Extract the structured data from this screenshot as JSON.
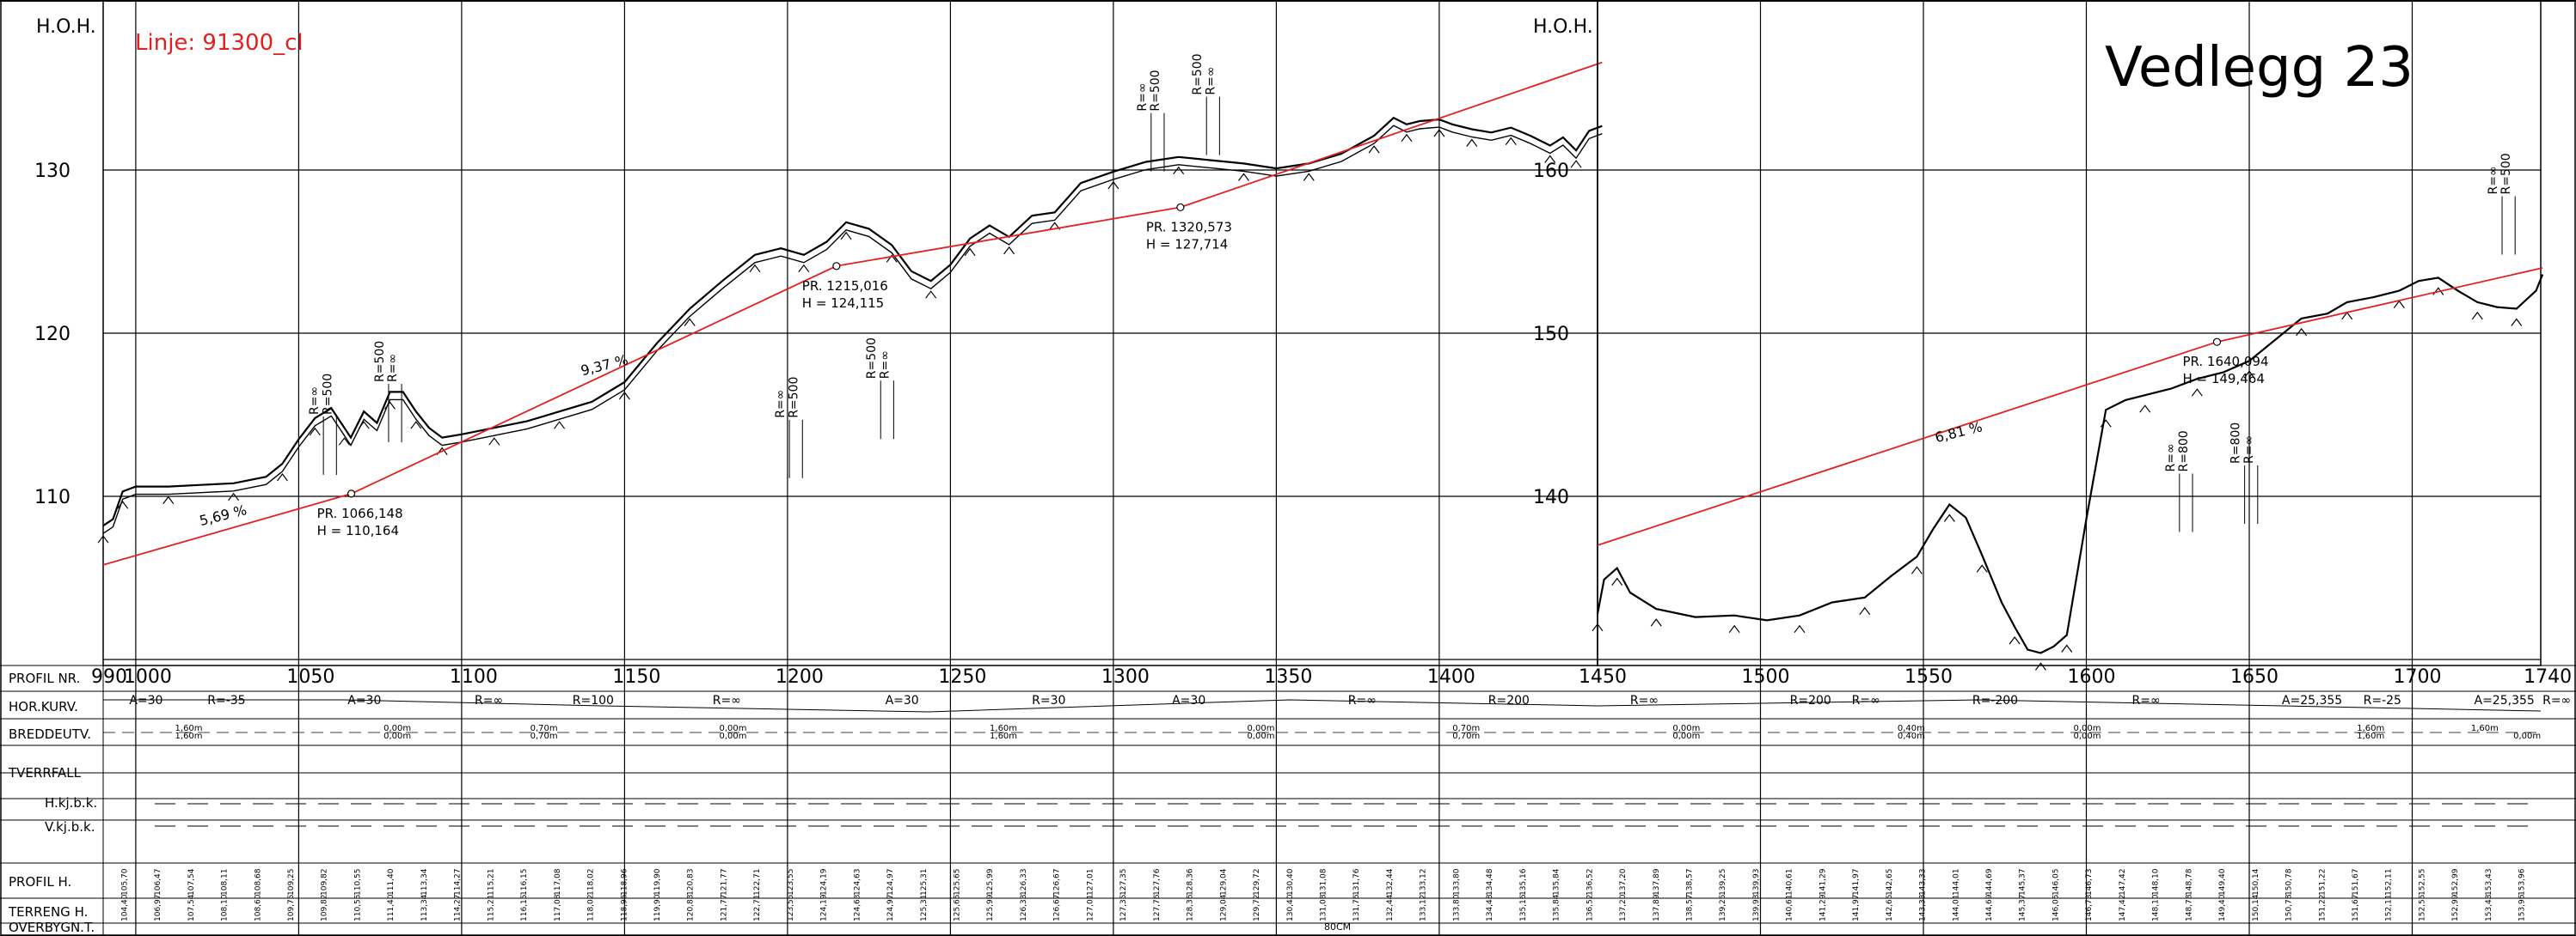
{
  "title": "Vedlegg 23",
  "line_label": "Linje: 91300_cl",
  "hoh_label": "H.O.H.",
  "left_panel": {
    "elev_ticks": [
      {
        "v": 110,
        "label": "110"
      },
      {
        "v": 120,
        "label": "120"
      },
      {
        "v": 130,
        "label": "130"
      }
    ],
    "chainage_labels": [
      "990",
      "1000",
      "1050",
      "1100",
      "1150",
      "1200",
      "1250",
      "1300",
      "1350",
      "1400"
    ],
    "grades": [
      {
        "text": "5,69 %",
        "ch": 1020,
        "elev": 108.2
      },
      {
        "text": "9,37 %",
        "ch": 1137,
        "elev": 117.4
      }
    ],
    "vpi": [
      {
        "pr": "PR. 1066,148",
        "h": "H = 110,164",
        "ch": 1066.148,
        "elev": 110.164
      },
      {
        "pr": "PR. 1215,016",
        "h": "H = 124,115",
        "ch": 1215.016,
        "elev": 124.115
      },
      {
        "pr": "PR. 1320,573",
        "h": "H = 127,714",
        "ch": 1320.573,
        "elev": 127.714
      }
    ],
    "radius_labels": [
      {
        "text": "R=∞",
        "ch": 1056,
        "elev": 115
      },
      {
        "text": "R=500",
        "ch": 1060,
        "elev": 115
      },
      {
        "text": "R=500",
        "ch": 1076,
        "elev": 117
      },
      {
        "text": "R=∞",
        "ch": 1080,
        "elev": 117
      },
      {
        "text": "R=∞",
        "ch": 1199,
        "elev": 114.8
      },
      {
        "text": "R=500",
        "ch": 1203,
        "elev": 114.8
      },
      {
        "text": "R=500",
        "ch": 1227,
        "elev": 117.2
      },
      {
        "text": "R=∞",
        "ch": 1231,
        "elev": 117.2
      },
      {
        "text": "R=∞",
        "ch": 1310,
        "elev": 133.6
      },
      {
        "text": "R=500",
        "ch": 1314,
        "elev": 133.6
      },
      {
        "text": "R=500",
        "ch": 1327,
        "elev": 134.6
      },
      {
        "text": "R=∞",
        "ch": 1331,
        "elev": 134.6
      }
    ]
  },
  "right_panel": {
    "elev_ticks": [
      {
        "v": 140,
        "label": "140"
      },
      {
        "v": 150,
        "label": "150"
      },
      {
        "v": 160,
        "label": "160"
      }
    ],
    "chainage_labels": [
      "1450",
      "1500",
      "1550",
      "1600",
      "1650",
      "1700",
      "1740"
    ],
    "grades": [
      {
        "text": "6,81 %",
        "ch": 1554,
        "elev": 143.3
      }
    ],
    "vpi": [
      {
        "pr": "PR. 1640,094",
        "h": "H = 149,464",
        "ch": 1640.094,
        "elev": 149.464
      }
    ],
    "radius_labels": [
      {
        "text": "R=∞",
        "ch": 1627,
        "elev": 141.5
      },
      {
        "text": "R=800",
        "ch": 1631,
        "elev": 141.5
      },
      {
        "text": "R=800",
        "ch": 1647,
        "elev": 142
      },
      {
        "text": "R=∞",
        "ch": 1651,
        "elev": 142
      },
      {
        "text": "R=∞",
        "ch": 1726,
        "elev": 158.5
      },
      {
        "text": "R=500",
        "ch": 1730,
        "elev": 158.5
      }
    ]
  },
  "bands": {
    "row_labels": [
      "PROFIL  NR.",
      "HOR.KURV.",
      "BREDDEUTV.",
      "TVERRFALL",
      "H.kj.b.k.",
      "V.kj.b.k.",
      "PROFIL  H.",
      "TERRENG  H.",
      "OVERBYGN.T."
    ],
    "hor_curves": [
      {
        "text": "A=30",
        "ch": 998
      },
      {
        "text": "R=-35",
        "ch": 1022
      },
      {
        "text": "A=30",
        "ch": 1065
      },
      {
        "text": "R=∞",
        "ch": 1104
      },
      {
        "text": "R=100",
        "ch": 1134
      },
      {
        "text": "R=∞",
        "ch": 1177
      },
      {
        "text": "A=30",
        "ch": 1230
      },
      {
        "text": "R=30",
        "ch": 1275
      },
      {
        "text": "A=30",
        "ch": 1318
      },
      {
        "text": "R=∞",
        "ch": 1372
      },
      {
        "text": "R=200",
        "ch": 1415
      },
      {
        "text": "R=∞",
        "ch": 1460
      },
      {
        "text": "R=200",
        "ch": 1509
      },
      {
        "text": "R=∞",
        "ch": 1528
      },
      {
        "text": "R=-200",
        "ch": 1565
      },
      {
        "text": "R=∞",
        "ch": 1614
      },
      {
        "text": "A=25,355",
        "ch": 1660
      },
      {
        "text": "R=-25",
        "ch": 1685
      },
      {
        "text": "A=25,355",
        "ch": 1719
      },
      {
        "text": "R=∞",
        "ch": 1740
      }
    ],
    "widening": [
      {
        "text": "1,60m",
        "ch": 1016
      },
      {
        "text": "1,60m",
        "ch": 1016
      },
      {
        "text": "0,00m",
        "ch": 1080
      },
      {
        "text": "0,00m",
        "ch": 1080
      },
      {
        "text": "0,70m",
        "ch": 1125
      },
      {
        "text": "0,70m",
        "ch": 1125
      },
      {
        "text": "0,00m",
        "ch": 1183
      },
      {
        "text": "0,00m",
        "ch": 1183
      },
      {
        "text": "1,60m",
        "ch": 1266
      },
      {
        "text": "1,60m",
        "ch": 1266
      },
      {
        "text": "0,00m",
        "ch": 1345
      },
      {
        "text": "0,00m",
        "ch": 1345
      },
      {
        "text": "0,70m",
        "ch": 1408
      },
      {
        "text": "0,70m",
        "ch": 1408
      },
      {
        "text": "0,00m",
        "ch": 1477
      },
      {
        "text": "0,00m",
        "ch": 1477
      },
      {
        "text": "0,40m",
        "ch": 1546
      },
      {
        "text": "0,40m",
        "ch": 1546
      },
      {
        "text": "0,00m",
        "ch": 1600
      },
      {
        "text": "0,00m",
        "ch": 1600
      },
      {
        "text": "1,60m",
        "ch": 1687
      },
      {
        "text": "1,60m",
        "ch": 1687
      },
      {
        "text": "1,60m",
        "ch": 1722
      },
      {
        "text": "0,00m",
        "ch": 1735
      }
    ],
    "profile_h": [
      "105,70",
      "106,47",
      "107,54",
      "108,11",
      "108,68",
      "109,25",
      "109,82",
      "110,55",
      "111,40",
      "113,34",
      "114,27",
      "115,21",
      "116,15",
      "117,08",
      "118,02",
      "118,96",
      "119,90",
      "120,83",
      "121,77",
      "122,71",
      "123,55",
      "124,19",
      "124,63",
      "124,97",
      "125,31",
      "125,65",
      "125,99",
      "126,33",
      "126,67",
      "127,01",
      "127,35",
      "127,76",
      "128,36",
      "129,04",
      "129,72",
      "130,40",
      "131,08",
      "131,76",
      "132,44",
      "133,12",
      "133,80",
      "134,48",
      "135,16",
      "135,84",
      "136,52",
      "137,20",
      "137,89",
      "138,57",
      "139,25",
      "139,93",
      "140,61",
      "141,29",
      "141,97",
      "142,65",
      "143,33",
      "144,01",
      "144,69",
      "145,37",
      "146,05",
      "146,73",
      "147,42",
      "148,10",
      "148,78",
      "149,40",
      "150,14",
      "150,78",
      "151,22",
      "151,67",
      "152,11",
      "152,55",
      "152,99",
      "153,43",
      "153,96"
    ],
    "terrain_h": [
      "104,40",
      "106,97",
      "107,54",
      "108,10",
      "108,60",
      "109,75",
      "109,82",
      "110,55",
      "111,40",
      "113,34",
      "114,27",
      "115,21",
      "116,15",
      "117,08",
      "118,02",
      "118,96",
      "119,90",
      "120,83",
      "121,77",
      "122,71",
      "123,55",
      "124,19",
      "124,63",
      "124,97",
      "125,31",
      "125,65",
      "125,99",
      "126,33",
      "126,67",
      "127,01",
      "127,35",
      "127,76",
      "128,36",
      "129,04",
      "129,72",
      "130,40",
      "131,08",
      "131,76",
      "132,44",
      "133,12",
      "133,80",
      "134,48",
      "135,16",
      "135,84",
      "136,52",
      "137,20",
      "137,89",
      "138,57",
      "139,25",
      "139,93",
      "140,61",
      "141,29",
      "141,97",
      "142,65",
      "143,33",
      "144,01",
      "144,69",
      "145,37",
      "146,05",
      "146,73",
      "147,42",
      "148,10",
      "148,78",
      "149,40",
      "150,14",
      "150,78",
      "151,22",
      "151,67",
      "152,11",
      "152,55",
      "152,99",
      "153,43",
      "153,96"
    ],
    "overbygn_label": "80CM"
  },
  "colors": {
    "ink": "#000000",
    "design_line": "#e32020",
    "background": "#ffffff"
  }
}
